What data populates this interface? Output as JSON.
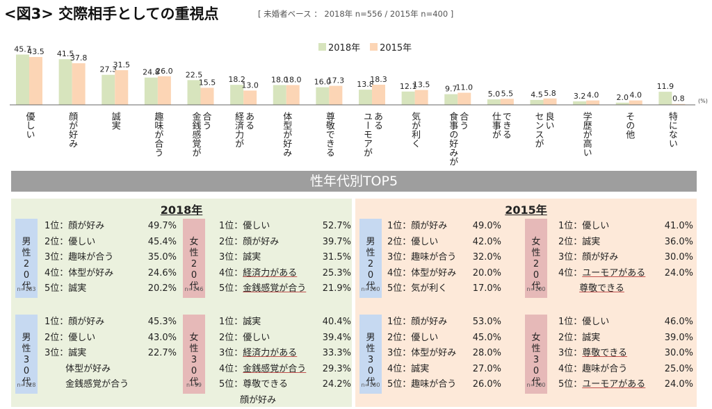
{
  "title": "<図3> 交際相手としての重視点",
  "subtitle": "[ 未婚者ベース ： 2018年 n=556 / 2015年 n=400 ]",
  "colors": {
    "series_2018": "#d7e4bd",
    "series_2015": "#fcd5b5"
  },
  "chart_data": {
    "type": "bar",
    "categories": [
      "優しい",
      "顔が好み",
      "誠実",
      "趣味が合う",
      "合う|金銭感覚が",
      "ある|経済力が",
      "体型が好み",
      "尊敬できる",
      "ある|ユーモアが",
      "気が利く",
      "合う|食事の好みが",
      "できる|仕事が",
      "良い|センスが",
      "学歴が高い",
      "その他",
      "特にない"
    ],
    "series": [
      {
        "name": "2018年",
        "values": [
          45.7,
          41.5,
          27.3,
          24.8,
          22.5,
          18.2,
          18.0,
          16.0,
          13.8,
          12.1,
          9.7,
          5.0,
          4.5,
          3.2,
          2.0,
          11.9
        ]
      },
      {
        "name": "2015年",
        "values": [
          43.5,
          37.8,
          31.5,
          26.0,
          15.5,
          13.0,
          18.0,
          17.3,
          18.3,
          13.5,
          11.0,
          5.5,
          5.8,
          4.0,
          4.0,
          0.8
        ]
      }
    ],
    "unit": "(%)",
    "ylim": [
      0,
      50
    ],
    "legend": "top-center",
    "grid": false
  },
  "top5_title": "性年代別TOP5",
  "panels": [
    {
      "year": "2018年",
      "groups": [
        {
          "label": "男性20代",
          "gender": "male",
          "n": "n=183",
          "rows": [
            {
              "text": "1位：顔が好み",
              "pct": "49.7%"
            },
            {
              "text": "2位：優しい",
              "pct": "45.4%"
            },
            {
              "text": "3位：趣味が合う",
              "pct": "35.0%"
            },
            {
              "text": "4位：体型が好み",
              "pct": "24.6%"
            },
            {
              "text": "5位：誠実",
              "pct": "20.2%"
            }
          ]
        },
        {
          "label": "女性20代",
          "gender": "female",
          "n": "n=146",
          "rows": [
            {
              "text": "1位：優しい",
              "pct": "52.7%"
            },
            {
              "text": "2位：顔が好み",
              "pct": "39.7%"
            },
            {
              "text": "3位：誠実",
              "pct": "31.5%"
            },
            {
              "text": "4位：経済力がある",
              "pct": "25.3%",
              "ul": true
            },
            {
              "text": "5位：金銭感覚が合う",
              "pct": "21.9%",
              "ul": true
            }
          ]
        },
        {
          "label": "男性30代",
          "gender": "male",
          "n": "n=128",
          "rows": [
            {
              "text": "1位：顔が好み",
              "pct": "45.3%"
            },
            {
              "text": "2位：優しい",
              "pct": "43.0%"
            },
            {
              "text": "3位：誠実",
              "pct": "22.7%"
            },
            {
              "text": "　　 体型が好み",
              "pct": ""
            },
            {
              "text": "　　 金銭感覚が合う",
              "pct": ""
            }
          ]
        },
        {
          "label": "女性30代",
          "gender": "female",
          "n": "n=99",
          "rows": [
            {
              "text": "1位：誠実",
              "pct": "40.4%"
            },
            {
              "text": "2位：優しい",
              "pct": "39.4%"
            },
            {
              "text": "3位：経済力がある",
              "pct": "33.3%",
              "ul": true
            },
            {
              "text": "4位：金銭感覚が合う",
              "pct": "29.3%",
              "ul": true
            },
            {
              "text": "5位：尊敬できる",
              "pct": "24.2%"
            },
            {
              "text": "　　 顔が好み",
              "pct": ""
            }
          ]
        }
      ]
    },
    {
      "year": "2015年",
      "groups": [
        {
          "label": "男性20代",
          "gender": "male",
          "n": "n=100",
          "rows": [
            {
              "text": "1位：顔が好み",
              "pct": "49.0%"
            },
            {
              "text": "2位：優しい",
              "pct": "42.0%"
            },
            {
              "text": "3位：趣味が合う",
              "pct": "32.0%"
            },
            {
              "text": "4位：体型が好み",
              "pct": "20.0%"
            },
            {
              "text": "5位：気が利く",
              "pct": "17.0%"
            }
          ]
        },
        {
          "label": "女性20代",
          "gender": "female",
          "n": "n=100",
          "rows": [
            {
              "text": "1位：優しい",
              "pct": "41.0%"
            },
            {
              "text": "2位：誠実",
              "pct": "36.0%"
            },
            {
              "text": "3位：顔が好み",
              "pct": "30.0%"
            },
            {
              "text": "4位：ユーモアがある",
              "pct": "24.0%",
              "ul": true
            },
            {
              "text": "　　 尊敬できる",
              "pct": "",
              "ul": true
            }
          ]
        },
        {
          "label": "男性30代",
          "gender": "male",
          "n": "n=100",
          "rows": [
            {
              "text": "1位：顔が好み",
              "pct": "53.0%"
            },
            {
              "text": "2位：優しい",
              "pct": "45.0%"
            },
            {
              "text": "3位：体型が好み",
              "pct": "28.0%"
            },
            {
              "text": "4位：誠実",
              "pct": "27.0%"
            },
            {
              "text": "5位：趣味が合う",
              "pct": "26.0%"
            }
          ]
        },
        {
          "label": "女性30代",
          "gender": "female",
          "n": "n=100",
          "rows": [
            {
              "text": "1位：優しい",
              "pct": "46.0%"
            },
            {
              "text": "2位：誠実",
              "pct": "39.0%"
            },
            {
              "text": "3位：尊敬できる",
              "pct": "30.0%",
              "ul": true
            },
            {
              "text": "4位：趣味が合う",
              "pct": "25.0%"
            },
            {
              "text": "5位：ユーモアがある",
              "pct": "24.0%",
              "ul": true
            }
          ]
        }
      ]
    }
  ]
}
